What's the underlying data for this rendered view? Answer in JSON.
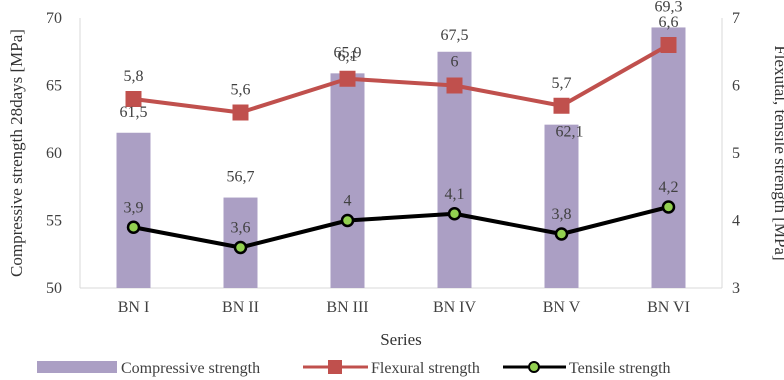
{
  "chart_data": {
    "type": "bar",
    "categories": [
      "BN I",
      "BN II",
      "BN III",
      "BN IV",
      "BN V",
      "BN VI"
    ],
    "xlabel": "Series",
    "ylabel": "Compressive strength 28days [MPa]",
    "y2label": "Flexutal, tensile strength [MPa]",
    "ylim": [
      50,
      70
    ],
    "y2lim": [
      3,
      7
    ],
    "yticks": [
      50,
      55,
      60,
      65,
      70
    ],
    "y2ticks": [
      3,
      4,
      5,
      6,
      7
    ],
    "grid": false,
    "legend_position": "bottom",
    "series": [
      {
        "name": "Compressive strength",
        "type": "bar",
        "axis": "left",
        "color": "#ab9fc4",
        "values": [
          61.5,
          56.7,
          65.9,
          67.5,
          62.1,
          69.3
        ],
        "labels": [
          "61,5",
          "56,7",
          "65,9",
          "67,5",
          "62,1",
          "69,3"
        ]
      },
      {
        "name": "Flexural strength",
        "type": "line",
        "axis": "right",
        "color": "#c0504d",
        "marker": "square",
        "values": [
          5.8,
          5.6,
          6.1,
          6.0,
          5.7,
          6.6
        ],
        "labels": [
          "5,8",
          "5,6",
          "6,1",
          "6",
          "5,7",
          "6,6"
        ]
      },
      {
        "name": "Tensile strength",
        "type": "line",
        "axis": "right",
        "color": "#000000",
        "marker": "circle",
        "marker_fill": "#92d050",
        "values": [
          3.9,
          3.6,
          4.0,
          4.1,
          3.8,
          4.2
        ],
        "labels": [
          "3,9",
          "3,6",
          "4",
          "4,1",
          "3,8",
          "4,2"
        ]
      }
    ]
  }
}
